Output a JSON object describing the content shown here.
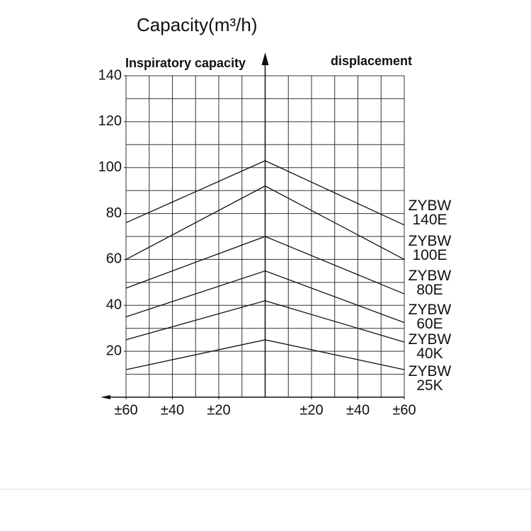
{
  "chart_data": {
    "type": "line",
    "title": "Capacity(m³/h)",
    "left_label": "Inspiratory capacity",
    "right_label": "displacement",
    "x": [
      -60,
      0,
      60
    ],
    "series": [
      {
        "name": "ZYBW 140E",
        "color": "#111111",
        "values": [
          76,
          103,
          75
        ]
      },
      {
        "name": "ZYBW 100E",
        "color": "#111111",
        "values": [
          60,
          92,
          60
        ]
      },
      {
        "name": "ZYBW 80E",
        "color": "#111111",
        "values": [
          47.5,
          70,
          45
        ]
      },
      {
        "name": "ZYBW 60E",
        "color": "#111111",
        "values": [
          35,
          55,
          32.5
        ]
      },
      {
        "name": "ZYBW 40K",
        "color": "#111111",
        "values": [
          25,
          42,
          24
        ]
      },
      {
        "name": "ZYBW 25K",
        "color": "#111111",
        "values": [
          12,
          25,
          12
        ]
      }
    ],
    "xlim": [
      -60,
      60
    ],
    "ylim": [
      0,
      140
    ],
    "xticks": [
      {
        "value": -60,
        "label": "±60"
      },
      {
        "value": -40,
        "label": "±40"
      },
      {
        "value": -20,
        "label": "±20"
      },
      {
        "value": 20,
        "label": "±20"
      },
      {
        "value": 40,
        "label": "±40"
      },
      {
        "value": 60,
        "label": "±60"
      }
    ],
    "yticks": [
      20,
      40,
      60,
      80,
      100,
      120,
      140
    ],
    "xgrid": [
      -60,
      -50,
      -40,
      -30,
      -20,
      -10,
      0,
      10,
      20,
      30,
      40,
      50,
      60
    ],
    "ygrid": [
      0,
      10,
      20,
      30,
      40,
      50,
      60,
      70,
      80,
      90,
      100,
      110,
      120,
      130,
      140
    ],
    "grid": true
  }
}
